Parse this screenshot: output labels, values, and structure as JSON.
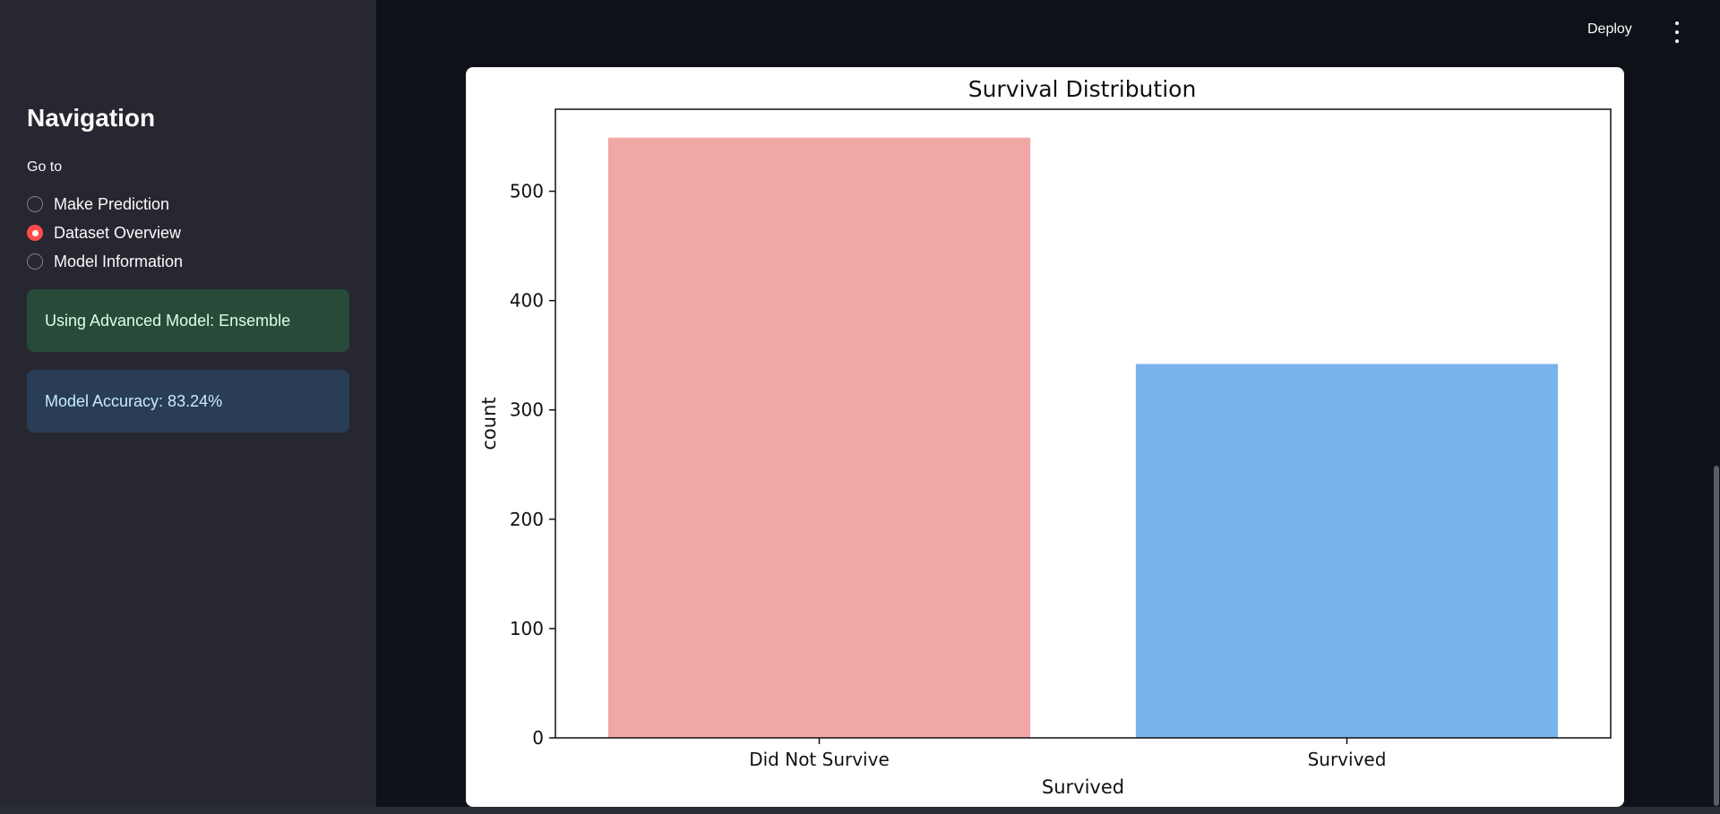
{
  "sidebar": {
    "title": "Navigation",
    "goto_label": "Go to",
    "options": [
      "Make Prediction",
      "Dataset Overview",
      "Model Information"
    ],
    "selected_index": 1,
    "success_message": "Using Advanced Model: Ensemble",
    "info_message": "Model Accuracy: 83.24%"
  },
  "header": {
    "deploy_label": "Deploy",
    "menu_icon": "vertical-ellipsis-icon"
  },
  "colors": {
    "accent": "#ff4b4b",
    "bar_did_not_survive": "#f2a7a7",
    "bar_survived": "#7ab3ed"
  },
  "chart_data": {
    "type": "bar",
    "title": "Survival Distribution",
    "xlabel": "Survived",
    "ylabel": "count",
    "categories": [
      "Did Not Survive",
      "Survived"
    ],
    "values": [
      549,
      342
    ],
    "ylim": [
      0,
      575
    ],
    "yticks": [
      0,
      100,
      200,
      300,
      400,
      500
    ],
    "grid": false,
    "legend": "none"
  }
}
